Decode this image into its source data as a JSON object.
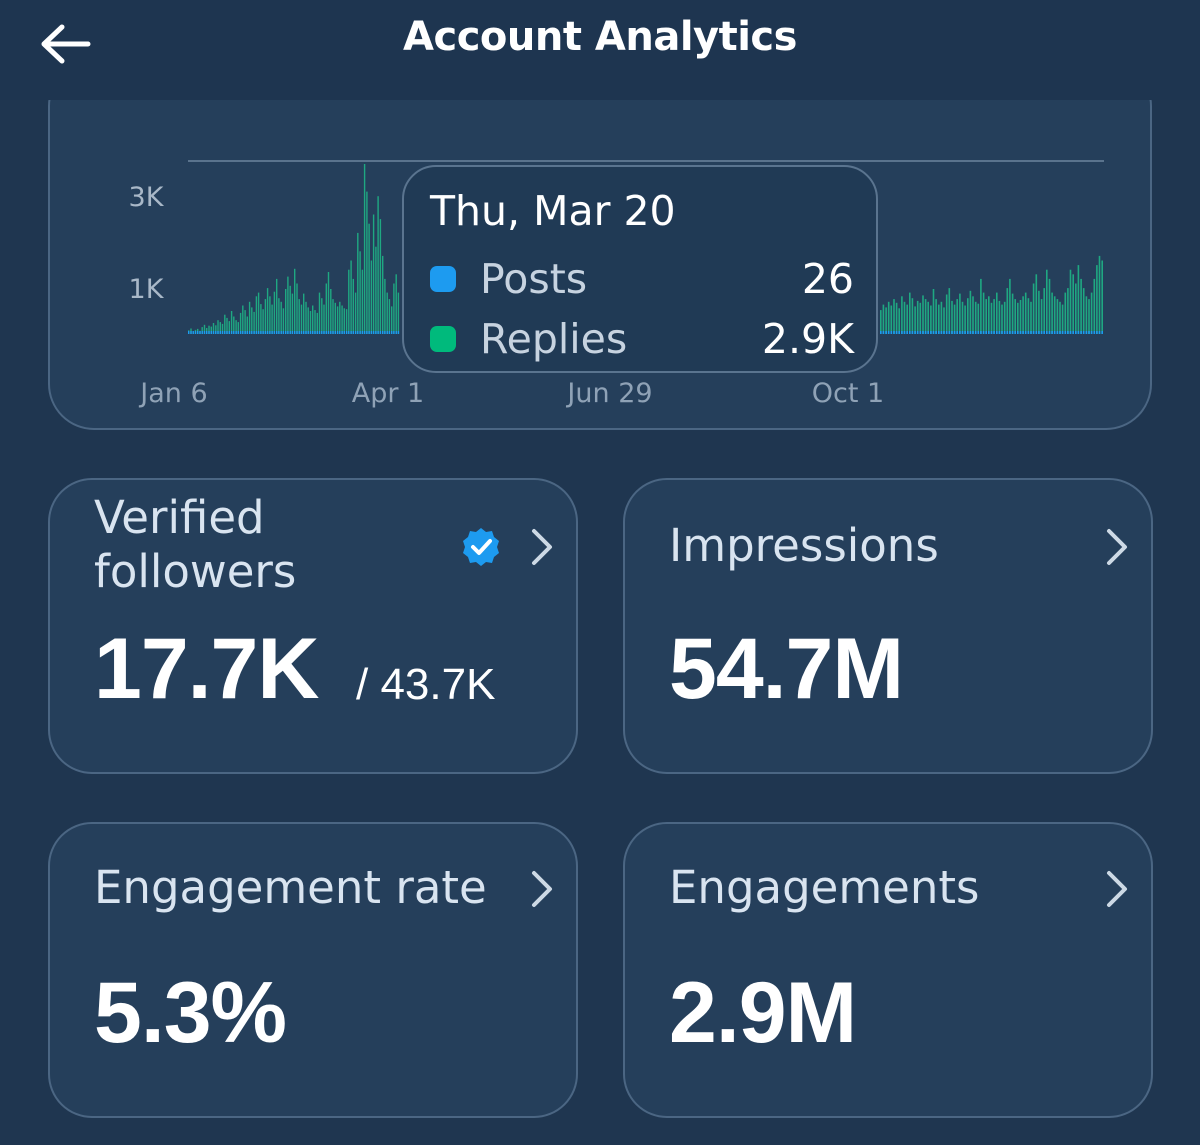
{
  "header": {
    "title": "Account Analytics",
    "back_icon": "arrow-left-icon"
  },
  "chart_data": {
    "type": "bar",
    "y_ticks": [
      "3K",
      "1K"
    ],
    "x_ticks": [
      "Jan 6",
      "Apr 1",
      "Jun 29",
      "Oct 1"
    ],
    "ylim": [
      0,
      3700
    ],
    "series": [
      {
        "name": "Posts",
        "color": "#1d9bf0"
      },
      {
        "name": "Replies",
        "color": "#00ba7c"
      }
    ],
    "daily_totals": [
      80,
      120,
      60,
      90,
      110,
      70,
      150,
      200,
      130,
      180,
      160,
      240,
      190,
      300,
      260,
      220,
      420,
      350,
      280,
      500,
      380,
      300,
      260,
      460,
      620,
      520,
      380,
      700,
      580,
      480,
      820,
      900,
      650,
      540,
      760,
      1000,
      820,
      640,
      920,
      1200,
      780,
      700,
      560,
      980,
      1250,
      1050,
      880,
      1420,
      1100,
      760,
      640,
      880,
      700,
      580,
      500,
      620,
      520,
      460,
      900,
      780,
      640,
      1100,
      1350,
      980,
      760,
      680,
      600,
      700,
      620,
      560,
      540,
      1400,
      1600,
      1200,
      900,
      2200,
      1800,
      1400,
      3700,
      3100,
      2400,
      1600,
      2600,
      1900,
      3000,
      2500,
      1700,
      1200,
      900,
      760,
      600,
      1100,
      1300,
      900
    ],
    "tooltip": {
      "date": "Thu, Mar 20",
      "rows": [
        {
          "label": "Posts",
          "value": "26",
          "color": "#1d9bf0"
        },
        {
          "label": "Replies",
          "value": "2.9K",
          "color": "#00ba7c"
        }
      ]
    },
    "daily_totals_right": [
      520,
      640,
      580,
      700,
      620,
      760,
      680,
      560,
      820,
      700,
      640,
      900,
      780,
      600,
      720,
      680,
      840,
      760,
      700,
      620,
      980,
      760,
      640,
      700,
      580,
      860,
      1000,
      720,
      640,
      760,
      880,
      700,
      620,
      780,
      940,
      820,
      700,
      660,
      1200,
      900,
      760,
      820,
      680,
      760,
      900,
      720,
      640,
      700,
      1000,
      1200,
      880,
      760,
      680,
      740,
      820,
      900,
      780,
      700,
      1100,
      1300,
      940,
      760,
      1000,
      1400,
      1200,
      900,
      820,
      760,
      700,
      640,
      900,
      1000,
      1400,
      1300,
      1100,
      1500,
      1200,
      1000,
      820,
      760,
      900,
      1200,
      1500,
      1700,
      1600
    ]
  },
  "cards": [
    {
      "title_line1": "Verified",
      "title_line2": "followers",
      "value": "17.7K",
      "sub": "/ 43.7K",
      "icon": "verified-badge-icon"
    },
    {
      "title": "Impressions",
      "value": "54.7M"
    },
    {
      "title": "Engagement rate",
      "value": "5.3%"
    },
    {
      "title": "Engagements",
      "value": "2.9M"
    }
  ]
}
